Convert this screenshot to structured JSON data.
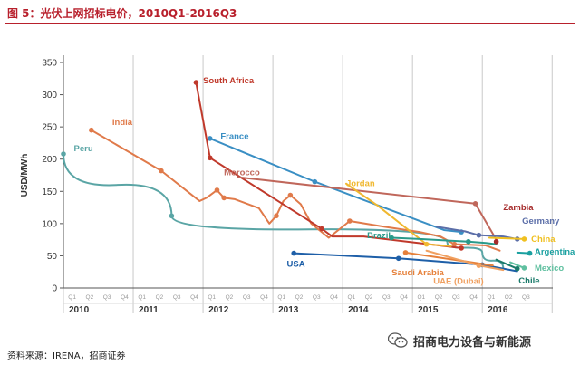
{
  "figure": {
    "title": "图 5：光伏上网招标电价，2010Q1-2016Q3",
    "source": "资料来源：IRENA，招商证券",
    "watermark": "招商电力设备与新能源"
  },
  "colors": {
    "peru": "#5aa5a5",
    "india": "#e07a4a",
    "south_africa": "#c0392b",
    "france": "#3a8fc4",
    "morocco": "#c0675b",
    "jordan": "#f0b830",
    "brazil": "#2a9a8a",
    "usa": "#1e5fa8",
    "saudi": "#e6803a",
    "uae": "#f0a060",
    "zambia": "#a52a2a",
    "germany": "#5b6ea8",
    "china": "#f0c020",
    "argentina": "#1aa0a0",
    "mexico": "#60c0a0",
    "chile": "#1a7a6a"
  },
  "chart_data": {
    "type": "line",
    "title": "",
    "xlabel": "",
    "ylabel": "USD/MWh",
    "ylim": [
      0,
      350
    ],
    "yticks": [
      0,
      50,
      100,
      150,
      200,
      250,
      300,
      350
    ],
    "xlim": [
      2010,
      2016.75
    ],
    "quarter_labels": [
      "Q1",
      "Q2",
      "Q3",
      "Q4"
    ],
    "years": [
      "2010",
      "2011",
      "2012",
      "2013",
      "2014",
      "2015",
      "2016"
    ],
    "grid": "vertical year separators",
    "legend": "inline labels",
    "series": [
      {
        "name": "Peru",
        "color_key": "peru",
        "style": "curve",
        "points": [
          [
            2010.0,
            208
          ],
          [
            2011.55,
            112
          ],
          [
            2015.5,
            70
          ],
          [
            2016.0,
            55
          ],
          [
            2016.3,
            30
          ]
        ],
        "markers": [
          [
            2010.0,
            208
          ],
          [
            2011.55,
            112
          ]
        ]
      },
      {
        "name": "India",
        "color_key": "india",
        "style": "polyline",
        "points": [
          [
            2010.4,
            245
          ],
          [
            2011.4,
            182
          ],
          [
            2011.95,
            135
          ],
          [
            2012.05,
            140
          ],
          [
            2012.2,
            152
          ],
          [
            2012.3,
            140
          ],
          [
            2012.45,
            138
          ],
          [
            2012.8,
            124
          ],
          [
            2012.95,
            100
          ],
          [
            2013.05,
            112
          ],
          [
            2013.15,
            135
          ],
          [
            2013.25,
            144
          ],
          [
            2013.4,
            130
          ],
          [
            2013.55,
            100
          ],
          [
            2013.8,
            78
          ],
          [
            2014.1,
            104
          ],
          [
            2014.6,
            95
          ],
          [
            2015.1,
            87
          ],
          [
            2015.4,
            80
          ],
          [
            2015.6,
            68
          ],
          [
            2016.05,
            66
          ],
          [
            2016.25,
            58
          ]
        ],
        "markers": [
          [
            2010.4,
            245
          ],
          [
            2011.4,
            182
          ],
          [
            2012.2,
            152
          ],
          [
            2012.3,
            140
          ],
          [
            2013.25,
            144
          ],
          [
            2013.05,
            112
          ],
          [
            2014.1,
            104
          ],
          [
            2015.6,
            68
          ]
        ]
      },
      {
        "name": "South Africa",
        "color_key": "south_africa",
        "style": "polyline",
        "points": [
          [
            2011.9,
            319
          ],
          [
            2012.1,
            202
          ],
          [
            2013.7,
            92
          ],
          [
            2013.85,
            80
          ],
          [
            2014.3,
            80
          ],
          [
            2015.7,
            62
          ]
        ],
        "markers": [
          [
            2011.9,
            319
          ],
          [
            2012.1,
            202
          ],
          [
            2013.7,
            92
          ],
          [
            2015.7,
            62
          ]
        ]
      },
      {
        "name": "France",
        "color_key": "france",
        "style": "polyline",
        "points": [
          [
            2012.1,
            232
          ],
          [
            2013.6,
            165
          ],
          [
            2015.45,
            90
          ],
          [
            2015.7,
            87
          ]
        ],
        "markers": [
          [
            2012.1,
            232
          ],
          [
            2013.6,
            165
          ],
          [
            2015.7,
            87
          ]
        ]
      },
      {
        "name": "Morocco",
        "color_key": "morocco",
        "style": "polyline",
        "points": [
          [
            2012.5,
            172
          ],
          [
            2015.9,
            131
          ],
          [
            2016.2,
            75
          ]
        ],
        "markers": [
          [
            2015.9,
            131
          ]
        ]
      },
      {
        "name": "Jordan",
        "color_key": "jordan",
        "style": "polyline",
        "points": [
          [
            2014.05,
            162
          ],
          [
            2014.5,
            128
          ],
          [
            2015.2,
            68
          ],
          [
            2015.55,
            65
          ]
        ],
        "markers": [
          [
            2015.2,
            68
          ]
        ]
      },
      {
        "name": "Brazil",
        "color_key": "brazil",
        "style": "polyline",
        "points": [
          [
            2014.7,
            78
          ],
          [
            2015.1,
            76
          ],
          [
            2015.8,
            72
          ],
          [
            2016.05,
            70
          ],
          [
            2016.2,
            68
          ]
        ],
        "markers": [
          [
            2014.7,
            78
          ],
          [
            2015.8,
            72
          ]
        ]
      },
      {
        "name": "USA",
        "color_key": "usa",
        "style": "polyline",
        "points": [
          [
            2013.3,
            54
          ],
          [
            2014.8,
            46
          ],
          [
            2016.0,
            36
          ],
          [
            2016.5,
            26
          ]
        ],
        "markers": [
          [
            2013.3,
            54
          ],
          [
            2014.8,
            46
          ],
          [
            2016.0,
            36
          ]
        ]
      },
      {
        "name": "Saudi Arabia",
        "color_key": "saudi",
        "style": "polyline",
        "points": [
          [
            2014.9,
            55
          ],
          [
            2016.15,
            35
          ]
        ],
        "markers": [
          [
            2014.9,
            55
          ]
        ]
      },
      {
        "name": "UAE (Dubai)",
        "color_key": "uae",
        "style": "polyline",
        "points": [
          [
            2015.2,
            58
          ],
          [
            2015.95,
            35
          ],
          [
            2016.3,
            28
          ]
        ],
        "markers": [
          [
            2015.95,
            35
          ]
        ]
      },
      {
        "name": "Zambia",
        "color_key": "zambia",
        "style": "polyline",
        "points": [
          [
            2016.2,
            72
          ]
        ],
        "markers": [
          [
            2016.2,
            72
          ]
        ]
      },
      {
        "name": "Germany",
        "color_key": "germany",
        "style": "polyline",
        "points": [
          [
            2015.35,
            95
          ],
          [
            2015.75,
            88
          ],
          [
            2015.95,
            82
          ],
          [
            2016.3,
            80
          ],
          [
            2016.5,
            76
          ]
        ],
        "markers": [
          [
            2015.95,
            82
          ],
          [
            2016.5,
            76
          ]
        ]
      },
      {
        "name": "China",
        "color_key": "china",
        "style": "polyline",
        "points": [
          [
            2016.1,
            78
          ],
          [
            2016.6,
            76
          ]
        ],
        "markers": [
          [
            2016.6,
            76
          ]
        ]
      },
      {
        "name": "Argentina",
        "color_key": "argentina",
        "style": "polyline",
        "points": [
          [
            2016.5,
            55
          ],
          [
            2016.68,
            54
          ]
        ],
        "markers": [
          [
            2016.68,
            54
          ]
        ]
      },
      {
        "name": "Mexico",
        "color_key": "mexico",
        "style": "polyline",
        "points": [
          [
            2016.4,
            40
          ],
          [
            2016.6,
            31
          ]
        ],
        "markers": [
          [
            2016.6,
            31
          ]
        ]
      },
      {
        "name": "Chile",
        "color_key": "chile",
        "style": "polyline",
        "points": [
          [
            2016.2,
            44
          ],
          [
            2016.5,
            30
          ]
        ],
        "markers": [
          [
            2016.5,
            30
          ]
        ]
      }
    ],
    "labels": [
      {
        "text": "Peru",
        "color_key": "peru",
        "x": 2010.15,
        "y": 212
      },
      {
        "text": "India",
        "color_key": "india",
        "x": 2010.7,
        "y": 253
      },
      {
        "text": "South Africa",
        "color_key": "south_africa",
        "x": 2012.0,
        "y": 318
      },
      {
        "text": "France",
        "color_key": "france",
        "x": 2012.25,
        "y": 231
      },
      {
        "text": "Morocco",
        "color_key": "morocco",
        "x": 2012.3,
        "y": 175
      },
      {
        "text": "Jordan",
        "color_key": "jordan",
        "x": 2014.05,
        "y": 158
      },
      {
        "text": "Brazil",
        "color_key": "brazil",
        "x": 2014.35,
        "y": 77
      },
      {
        "text": "USA",
        "color_key": "usa",
        "x": 2013.2,
        "y": 33
      },
      {
        "text": "Saudi Arabia",
        "color_key": "saudi",
        "x": 2014.7,
        "y": 20
      },
      {
        "text": "UAE (Dubai)",
        "color_key": "uae",
        "x": 2015.3,
        "y": 6
      },
      {
        "text": "Zambia",
        "color_key": "zambia",
        "x": 2016.3,
        "y": 121
      },
      {
        "text": "Germany",
        "color_key": "germany",
        "x": 2016.57,
        "y": 100
      },
      {
        "text": "China",
        "color_key": "china",
        "x": 2016.7,
        "y": 72
      },
      {
        "text": "Argentina",
        "color_key": "argentina",
        "x": 2016.75,
        "y": 52
      },
      {
        "text": "Mexico",
        "color_key": "mexico",
        "x": 2016.75,
        "y": 27
      },
      {
        "text": "Chile",
        "color_key": "chile",
        "x": 2016.52,
        "y": 7
      }
    ]
  }
}
